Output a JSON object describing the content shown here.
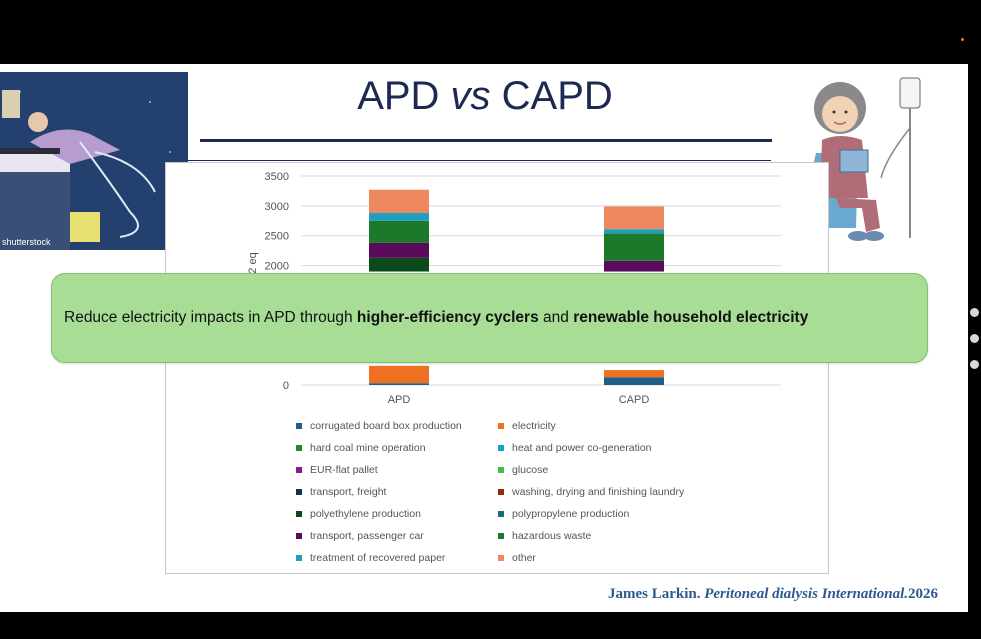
{
  "title": {
    "part1": "APD ",
    "vs": "vs",
    "part2": " CAPD"
  },
  "banner": {
    "prefix": "Reduce electricity impacts in APD through ",
    "bold1": "higher-efficiency cyclers",
    "mid": " and ",
    "bold2": "renewable household electricity"
  },
  "citation": {
    "author": "James Larkin. ",
    "journal": "Peritoneal dialysis International.",
    "year": "2026"
  },
  "photo_watermark": "shutterstock",
  "colors": {
    "slide_bg": "#ffffff",
    "title": "#1c2a52",
    "banner": "#a8dd96",
    "citation": "#2d5a8c"
  },
  "chart_data": {
    "type": "bar",
    "stacked": true,
    "categories": [
      "APD",
      "CAPD"
    ],
    "ylabel_visible": "2 eq",
    "ylim": [
      0,
      3500
    ],
    "yticks": [
      0,
      2000,
      2500,
      3000,
      3500
    ],
    "grid": true,
    "legend_placement": "bottom",
    "legend": [
      {
        "name": "corrugated board box production",
        "color": "#1f5f87"
      },
      {
        "name": "electricity",
        "color": "#ee7020"
      },
      {
        "name": "hard coal mine operation",
        "color": "#1e8a2a"
      },
      {
        "name": "heat and power co-generation",
        "color": "#1aa0d0"
      },
      {
        "name": "EUR-flat pallet",
        "color": "#8a1a8a"
      },
      {
        "name": "glucose",
        "color": "#40c040"
      },
      {
        "name": "transport, freight",
        "color": "#0a3a4a"
      },
      {
        "name": "washing, drying and finishing laundry",
        "color": "#8a3010"
      },
      {
        "name": "polyethylene production",
        "color": "#0a4a1a"
      },
      {
        "name": "polypropylene production",
        "color": "#1a6a80"
      },
      {
        "name": "transport, passenger car",
        "color": "#5a0a5a"
      },
      {
        "name": "hazardous waste",
        "color": "#1a7a2a"
      },
      {
        "name": "treatment of recovered paper",
        "color": "#20a0c0"
      },
      {
        "name": "other",
        "color": "#ee8860"
      }
    ],
    "visible_segments": [
      {
        "category": "APD",
        "segments": [
          {
            "name": "corrugated board box production",
            "from": 0,
            "to": 30,
            "color": "#1f5f87"
          },
          {
            "name": "electricity",
            "from": 30,
            "to": 320,
            "color": "#ee7020"
          },
          {
            "name": "polyethylene production",
            "from": 1900,
            "to": 2130,
            "color": "#0a4a1a"
          },
          {
            "name": "transport, passenger car",
            "from": 2130,
            "to": 2380,
            "color": "#5a0a5a"
          },
          {
            "name": "hazardous waste",
            "from": 2380,
            "to": 2750,
            "color": "#1a7a2a"
          },
          {
            "name": "treatment of recovered paper",
            "from": 2750,
            "to": 2880,
            "color": "#20a0c0"
          },
          {
            "name": "other",
            "from": 2880,
            "to": 3270,
            "color": "#ee8860"
          }
        ]
      },
      {
        "category": "CAPD",
        "segments": [
          {
            "name": "corrugated board box production",
            "from": 0,
            "to": 130,
            "color": "#1f5f87"
          },
          {
            "name": "electricity",
            "from": 130,
            "to": 250,
            "color": "#ee7020"
          },
          {
            "name": "transport, passenger car",
            "from": 1900,
            "to": 2080,
            "color": "#5a0a5a"
          },
          {
            "name": "hazardous waste",
            "from": 2080,
            "to": 2540,
            "color": "#1a7a2a"
          },
          {
            "name": "treatment of recovered paper",
            "from": 2540,
            "to": 2610,
            "color": "#20a0c0"
          },
          {
            "name": "other",
            "from": 2610,
            "to": 2990,
            "color": "#ee8860"
          }
        ]
      }
    ]
  }
}
